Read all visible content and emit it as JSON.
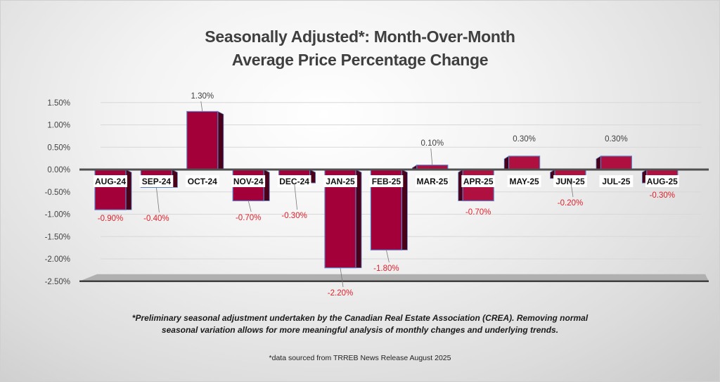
{
  "chart_data": {
    "type": "bar",
    "title": "Seasonally Adjusted*:  Month-Over-Month Average Price Percentage Change",
    "title_lines": [
      "Seasonally Adjusted*:  Month-Over-Month",
      "Average Price Percentage Change"
    ],
    "xlabel": "",
    "ylabel": "",
    "categories": [
      "AUG-24",
      "SEP-24",
      "OCT-24",
      "NOV-24",
      "DEC-24",
      "JAN-25",
      "FEB-25",
      "MAR-25",
      "APR-25",
      "MAY-25",
      "JUN-25",
      "JUL-25",
      "AUG-25"
    ],
    "values": [
      -0.9,
      -0.4,
      1.3,
      -0.7,
      -0.3,
      -2.2,
      -1.8,
      0.1,
      -0.7,
      0.3,
      -0.2,
      0.3,
      -0.3
    ],
    "data_labels": [
      "-0.90%",
      "-0.40%",
      "1.30%",
      "-0.70%",
      "-0.30%",
      "-2.20%",
      "-1.80%",
      "0.10%",
      "-0.70%",
      "0.30%",
      "-0.20%",
      "0.30%",
      "-0.30%"
    ],
    "y_ticks": [
      1.5,
      1.0,
      0.5,
      0.0,
      -0.5,
      -1.0,
      -1.5,
      -2.0,
      -2.5
    ],
    "y_tick_labels": [
      "1.50%",
      "1.00%",
      "0.50%",
      "0.00%",
      "-0.50%",
      "-1.00%",
      "-1.50%",
      "-2.00%",
      "-2.50%"
    ],
    "ylim": [
      -2.5,
      1.5
    ],
    "grid": true,
    "legend": "none",
    "unit": "%",
    "colors": {
      "bar_front": "#a3003a",
      "bar_side": "#4a0019",
      "bar_edge": "#5b7fc2",
      "positive_label": "#404040",
      "negative_label": "#e0202a",
      "axis": "#505050",
      "floor": "#b0b0b0"
    }
  },
  "footnote": {
    "line1": "*Preliminary seasonal adjustment undertaken by the Canadian Real Estate Association (CREA).  Removing normal",
    "line2": "seasonal variation allows for more meaningful analysis of monthly changes and underlying trends."
  },
  "source": "*data sourced from TRREB News Release August 2025"
}
